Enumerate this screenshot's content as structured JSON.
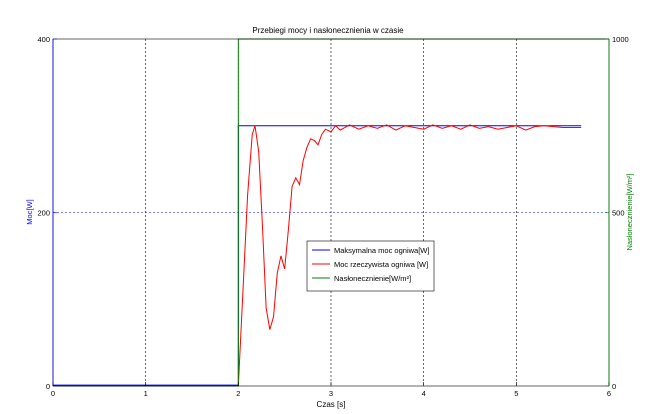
{
  "chart_data": {
    "type": "line",
    "title": "Przebiegi mocy i nasłonecznienia w czasie",
    "xlabel": "Czas [s]",
    "ylabel_left": "Moc[W]",
    "ylabel_right": "Nasłonecznienie[W/m²]",
    "xlim": [
      0,
      6
    ],
    "ylim_left": [
      0,
      400
    ],
    "ylim_right": [
      0,
      1000
    ],
    "x_ticks": [
      "0",
      "1",
      "2",
      "3",
      "4",
      "5",
      "6"
    ],
    "y_ticks_left": [
      "0",
      "200",
      "400"
    ],
    "y_ticks_right": [
      "0",
      "500",
      "1000"
    ],
    "grid": true,
    "legend_position": "center",
    "colors": {
      "left_axis": "#0000ff",
      "right_axis": "#008000"
    },
    "series": [
      {
        "name": "Maksymalna moc ogniwa[W]",
        "color": "#0000ff",
        "axis": "left",
        "x": [
          0,
          2.0,
          2.0,
          5.7
        ],
        "y": [
          1,
          1,
          300,
          300
        ]
      },
      {
        "name": "Moc rzeczywista ogniwa [W]",
        "color": "#ff0000",
        "axis": "left",
        "x": [
          0,
          2.0,
          2.05,
          2.1,
          2.15,
          2.18,
          2.22,
          2.26,
          2.3,
          2.34,
          2.38,
          2.42,
          2.46,
          2.5,
          2.54,
          2.58,
          2.62,
          2.66,
          2.7,
          2.74,
          2.78,
          2.82,
          2.86,
          2.9,
          2.94,
          3.0,
          3.05,
          3.1,
          3.2,
          3.3,
          3.4,
          3.5,
          3.6,
          3.7,
          3.8,
          3.9,
          4.0,
          4.1,
          4.2,
          4.3,
          4.4,
          4.5,
          4.6,
          4.7,
          4.8,
          4.9,
          5.0,
          5.1,
          5.2,
          5.3,
          5.4,
          5.5,
          5.6,
          5.7
        ],
        "y": [
          0,
          0,
          110,
          220,
          290,
          300,
          270,
          185,
          90,
          65,
          80,
          130,
          150,
          135,
          180,
          230,
          240,
          232,
          260,
          275,
          285,
          283,
          278,
          290,
          296,
          293,
          300,
          295,
          301,
          296,
          300,
          297,
          301,
          295,
          300,
          298,
          296,
          301,
          297,
          300,
          296,
          301,
          297,
          299,
          296,
          298,
          300,
          295,
          299,
          300,
          299,
          298,
          298,
          298
        ]
      },
      {
        "name": "Nasłonecznienie[W/m²]",
        "color": "#008000",
        "axis": "right",
        "x": [
          0,
          2.0,
          2.0,
          6.0
        ],
        "y": [
          0,
          0,
          1000,
          1000
        ]
      }
    ]
  }
}
